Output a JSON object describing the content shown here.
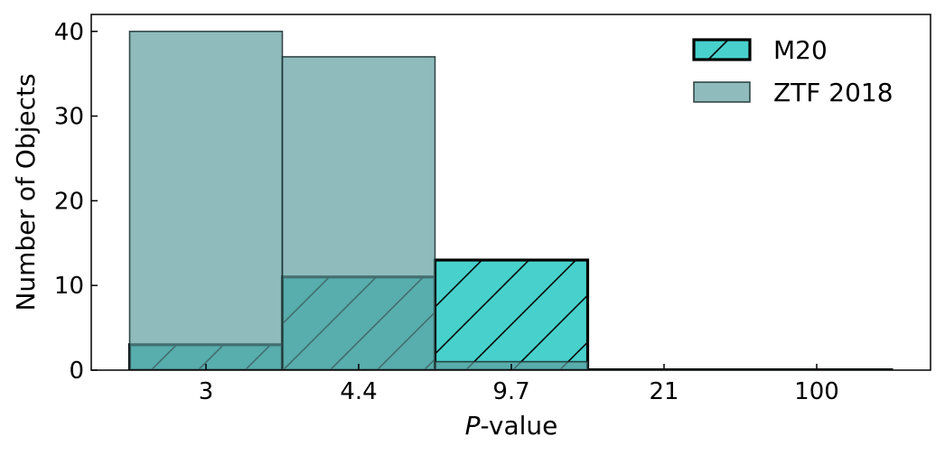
{
  "chart_data": {
    "type": "bar",
    "categories": [
      "3",
      "4.4",
      "9.7",
      "21",
      "100"
    ],
    "xlabel_italic": "P",
    "xlabel_rest": "-value",
    "ylabel": "Number of Objects",
    "ylim": [
      0,
      42
    ],
    "yticks": [
      0,
      10,
      20,
      30,
      40
    ],
    "legend_position": "top-right",
    "series": [
      {
        "name": "ZTF 2018",
        "values": [
          40,
          37,
          1,
          0,
          0
        ],
        "color": "#5f9ea0",
        "edge_color": "#1a2e2e",
        "alpha": 0.7,
        "hatch": false
      },
      {
        "name": "M20",
        "values": [
          3,
          11,
          13,
          0,
          0
        ],
        "color": "#48d1cc",
        "edge_color": "#000000",
        "alpha": 1.0,
        "hatch": true
      }
    ]
  }
}
